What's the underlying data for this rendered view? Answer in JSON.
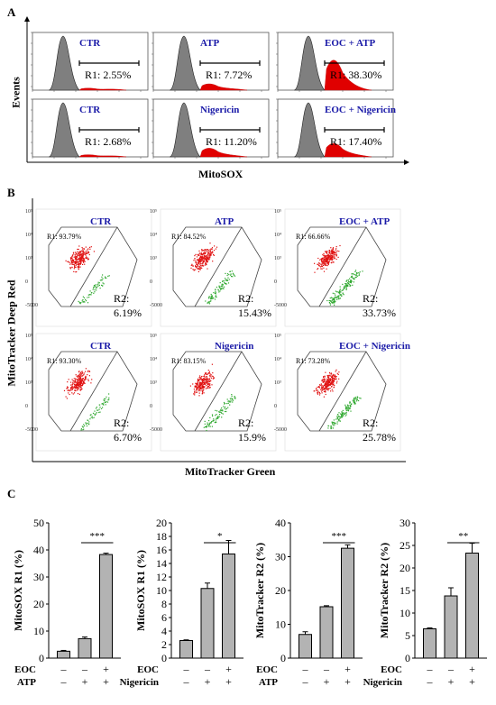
{
  "panels": {
    "a": "A",
    "b": "B",
    "c": "C"
  },
  "panel_a": {
    "y_title": "Events",
    "x_title": "MitoSOX",
    "plots": [
      {
        "label": "CTR",
        "r_text": "R1: 2.55%",
        "red": 0.025
      },
      {
        "label": "ATP",
        "r_text": "R1: 7.72%",
        "red": 0.08
      },
      {
        "label": "EOC + ATP",
        "r_text": "R1: 38.30%",
        "red": 0.38
      },
      {
        "label": "CTR",
        "r_text": "R1: 2.68%",
        "red": 0.027
      },
      {
        "label": "Nigericin",
        "r_text": "R1: 11.20%",
        "red": 0.11
      },
      {
        "label": "EOC + Nigericin",
        "r_text": "R1: 17.40%",
        "red": 0.17
      }
    ]
  },
  "panel_b": {
    "y_title": "MitoTracker Deep Red",
    "x_title": "MitoTracker Green",
    "plots": [
      {
        "label": "CTR",
        "r1": "R1: 93.79%",
        "r2a": "R2:",
        "r2b": "6.19%",
        "green": 0.06
      },
      {
        "label": "ATP",
        "r1": "R1: 84.52%",
        "r2a": "R2:",
        "r2b": "15.43%",
        "green": 0.15
      },
      {
        "label": "EOC + ATP",
        "r1": "R1: 66.66%",
        "r2a": "R2:",
        "r2b": "33.73%",
        "green": 0.34
      },
      {
        "label": "CTR",
        "r1": "R1: 93.30%",
        "r2a": "R2:",
        "r2b": "6.70%",
        "green": 0.07
      },
      {
        "label": "Nigericin",
        "r1": "R1: 83.15%",
        "r2a": "R2:",
        "r2b": "15.9%",
        "green": 0.16
      },
      {
        "label": "EOC + Nigericin",
        "r1": "R1: 73.28%",
        "r2a": "R2:",
        "r2b": "25.78%",
        "green": 0.26
      }
    ]
  },
  "chart_data": [
    {
      "type": "bar",
      "ylabel": "MitoSOX R1 (%)",
      "ylim": [
        0,
        50
      ],
      "yticks": [
        0,
        10,
        20,
        30,
        40,
        50
      ],
      "categories": [
        "CTR",
        "ATP",
        "EOC + ATP"
      ],
      "values": [
        2.55,
        7.2,
        38.3
      ],
      "errors": [
        0.3,
        0.6,
        0.5
      ],
      "significance": "***",
      "rows": [
        {
          "name": "EOC",
          "marks": [
            "–",
            "–",
            "+"
          ]
        },
        {
          "name": "ATP",
          "marks": [
            "–",
            "+",
            "+"
          ]
        }
      ]
    },
    {
      "type": "bar",
      "ylabel": "MitoSOX R1 (%)",
      "ylim": [
        0,
        20
      ],
      "yticks": [
        0,
        2,
        4,
        6,
        8,
        10,
        12,
        14,
        16,
        18,
        20
      ],
      "categories": [
        "CTR",
        "Nigericin",
        "EOC + Nigericin"
      ],
      "values": [
        2.6,
        10.3,
        15.4
      ],
      "errors": [
        0.1,
        0.8,
        2.0
      ],
      "significance": "*",
      "rows": [
        {
          "name": "EOC",
          "marks": [
            "–",
            "–",
            "+"
          ]
        },
        {
          "name": "Nigericin",
          "marks": [
            "–",
            "+",
            "+"
          ]
        }
      ]
    },
    {
      "type": "bar",
      "ylabel": "MitoTracker R2 (%)",
      "ylim": [
        0,
        40
      ],
      "yticks": [
        0,
        10,
        20,
        30,
        40
      ],
      "categories": [
        "CTR",
        "ATP",
        "EOC + ATP"
      ],
      "values": [
        7.0,
        15.2,
        32.5
      ],
      "errors": [
        0.8,
        0.3,
        1.0
      ],
      "significance": "***",
      "rows": [
        {
          "name": "EOC",
          "marks": [
            "–",
            "–",
            "+"
          ]
        },
        {
          "name": "ATP",
          "marks": [
            "–",
            "+",
            "+"
          ]
        }
      ]
    },
    {
      "type": "bar",
      "ylabel": "MitoTracker R2 (%)",
      "ylim": [
        0,
        30
      ],
      "yticks": [
        0,
        5,
        10,
        15,
        20,
        25,
        30
      ],
      "categories": [
        "CTR",
        "Nigericin",
        "EOC + Nigericin"
      ],
      "values": [
        6.5,
        13.8,
        23.3
      ],
      "errors": [
        0.2,
        1.8,
        2.2
      ],
      "significance": "**",
      "rows": [
        {
          "name": "EOC",
          "marks": [
            "–",
            "–",
            "+"
          ]
        },
        {
          "name": "Nigericin",
          "marks": [
            "–",
            "+",
            "+"
          ]
        }
      ]
    }
  ]
}
